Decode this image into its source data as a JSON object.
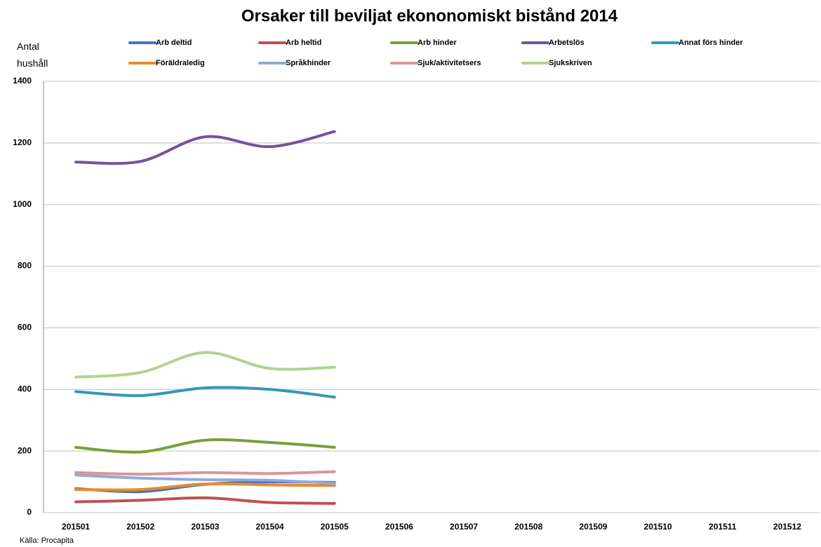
{
  "chart_data": {
    "type": "line",
    "title": "Orsaker till beviljat ekononomiskt bistånd 2014",
    "ylabel": "Antal hushåll",
    "source": "Källa: Procapita",
    "categories": [
      "201501",
      "201502",
      "201503",
      "201504",
      "201505",
      "201506",
      "201507",
      "201508",
      "201509",
      "201510",
      "201511",
      "201512"
    ],
    "ylim": [
      0,
      1400
    ],
    "yticks": [
      0,
      200,
      400,
      600,
      800,
      1000,
      1200,
      1400
    ],
    "grid": true,
    "smooth": true,
    "series": [
      {
        "name": "Arb deltid",
        "color": "#4472c4",
        "values": [
          78,
          68,
          92,
          100,
          98,
          null,
          null,
          null,
          null,
          null,
          null,
          null
        ]
      },
      {
        "name": "Arb heltid",
        "color": "#c0504d",
        "values": [
          35,
          40,
          48,
          33,
          30,
          null,
          null,
          null,
          null,
          null,
          null,
          null
        ]
      },
      {
        "name": "Arb hinder",
        "color": "#77a03c",
        "values": [
          212,
          197,
          235,
          228,
          212,
          null,
          null,
          null,
          null,
          null,
          null,
          null
        ]
      },
      {
        "name": "Arbetslös",
        "color": "#7552a0",
        "values": [
          1138,
          1140,
          1220,
          1188,
          1237,
          null,
          null,
          null,
          null,
          null,
          null,
          null
        ]
      },
      {
        "name": "Annat förs hinder",
        "color": "#3498b5",
        "values": [
          393,
          380,
          405,
          400,
          375,
          null,
          null,
          null,
          null,
          null,
          null,
          null
        ]
      },
      {
        "name": "Föräldraledig",
        "color": "#e98a2c",
        "values": [
          75,
          75,
          93,
          90,
          88,
          null,
          null,
          null,
          null,
          null,
          null,
          null
        ]
      },
      {
        "name": "Språkhinder",
        "color": "#92a9d8",
        "values": [
          122,
          112,
          107,
          105,
          95,
          null,
          null,
          null,
          null,
          null,
          null,
          null
        ]
      },
      {
        "name": "Sjuk/aktivitetsers",
        "color": "#d99694",
        "values": [
          130,
          125,
          130,
          127,
          133,
          null,
          null,
          null,
          null,
          null,
          null,
          null
        ]
      },
      {
        "name": "Sjukskriven",
        "color": "#b3d38a",
        "values": [
          440,
          455,
          520,
          468,
          472,
          null,
          null,
          null,
          null,
          null,
          null,
          null
        ]
      }
    ]
  }
}
